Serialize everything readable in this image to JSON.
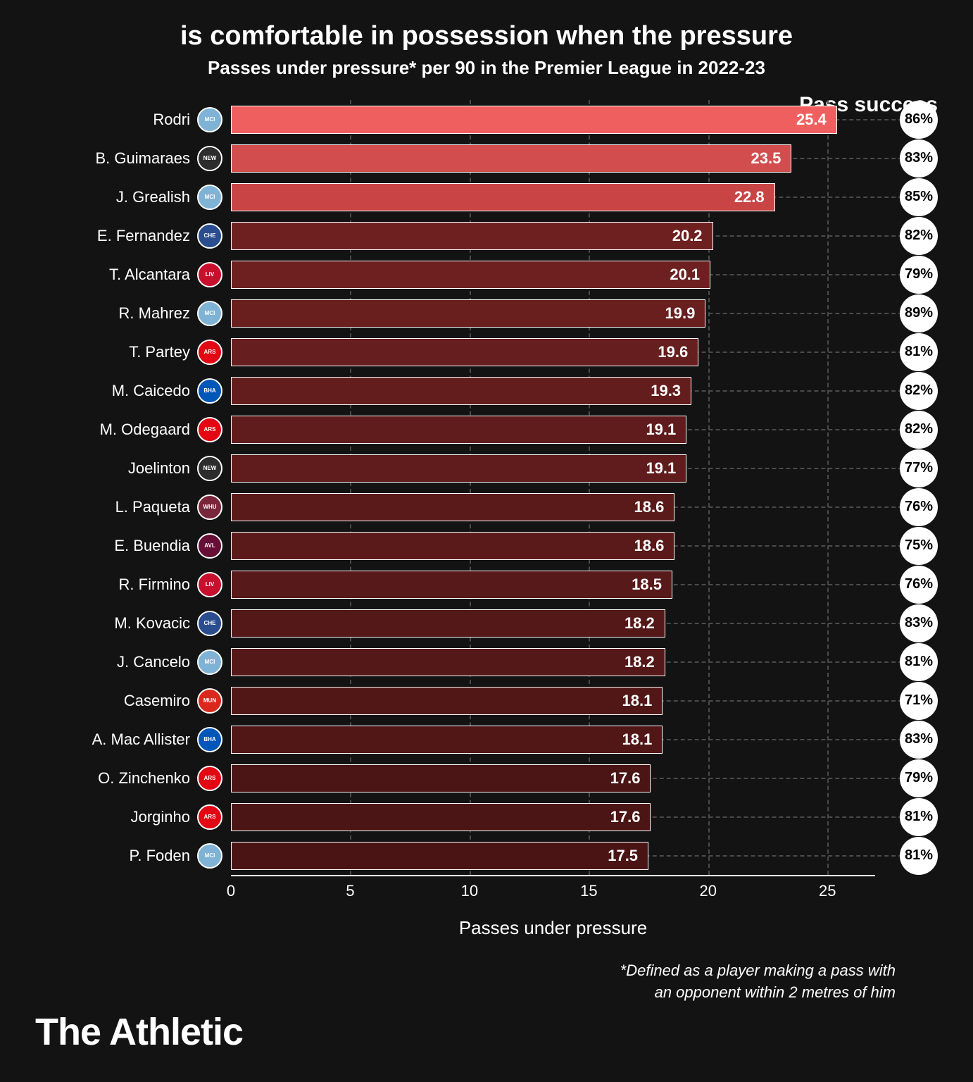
{
  "title": "is comfortable in possession when the pressure",
  "subtitle": "Passes under pressure* per 90 in the Premier League in 2022-23",
  "pass_success_header": "Pass success",
  "x_label": "Passes under pressure",
  "x_max": 27,
  "x_ticks": [
    0,
    5,
    10,
    15,
    20,
    25
  ],
  "footnote_line1": "*Defined as a player making a pass with",
  "footnote_line2": "an opponent within 2 metres of him",
  "brand": "The Athletic",
  "bar_border": "#ffffff",
  "grid_color": "#4a4a4a",
  "background": "#131313",
  "badge_bg": "#ffffff",
  "players": [
    {
      "name": "Rodri",
      "value": 25.4,
      "pct": "86%",
      "color": "#f05f5f",
      "team": "MCI",
      "team_bg": "#7fb3d5"
    },
    {
      "name": "B. Guimaraes",
      "value": 23.5,
      "pct": "83%",
      "color": "#d24d4d",
      "team": "NEW",
      "team_bg": "#2c2c2c"
    },
    {
      "name": "J. Grealish",
      "value": 22.8,
      "pct": "85%",
      "color": "#c94545",
      "team": "MCI",
      "team_bg": "#7fb3d5"
    },
    {
      "name": "E. Fernandez",
      "value": 20.2,
      "pct": "82%",
      "color": "#6e2020",
      "team": "CHE",
      "team_bg": "#2a4d8f"
    },
    {
      "name": "T. Alcantara",
      "value": 20.1,
      "pct": "79%",
      "color": "#6e2020",
      "team": "LIV",
      "team_bg": "#c8102e"
    },
    {
      "name": "R. Mahrez",
      "value": 19.9,
      "pct": "89%",
      "color": "#6a1f1f",
      "team": "MCI",
      "team_bg": "#7fb3d5"
    },
    {
      "name": "T. Partey",
      "value": 19.6,
      "pct": "81%",
      "color": "#671e1e",
      "team": "ARS",
      "team_bg": "#e30613"
    },
    {
      "name": "M. Caicedo",
      "value": 19.3,
      "pct": "82%",
      "color": "#631d1d",
      "team": "BHA",
      "team_bg": "#0057b8"
    },
    {
      "name": "M. Odegaard",
      "value": 19.1,
      "pct": "82%",
      "color": "#601c1c",
      "team": "ARS",
      "team_bg": "#e30613"
    },
    {
      "name": "Joelinton",
      "value": 19.1,
      "pct": "77%",
      "color": "#601c1c",
      "team": "NEW",
      "team_bg": "#2c2c2c"
    },
    {
      "name": "L. Paqueta",
      "value": 18.6,
      "pct": "76%",
      "color": "#5a1a1a",
      "team": "WHU",
      "team_bg": "#7a263a"
    },
    {
      "name": "E. Buendia",
      "value": 18.6,
      "pct": "75%",
      "color": "#5a1a1a",
      "team": "AVL",
      "team_bg": "#670e36"
    },
    {
      "name": "R. Firmino",
      "value": 18.5,
      "pct": "76%",
      "color": "#571919",
      "team": "LIV",
      "team_bg": "#c8102e"
    },
    {
      "name": "M. Kovacic",
      "value": 18.2,
      "pct": "83%",
      "color": "#541818",
      "team": "CHE",
      "team_bg": "#2a4d8f"
    },
    {
      "name": "J. Cancelo",
      "value": 18.2,
      "pct": "81%",
      "color": "#541818",
      "team": "MCI",
      "team_bg": "#7fb3d5"
    },
    {
      "name": "Casemiro",
      "value": 18.1,
      "pct": "71%",
      "color": "#511717",
      "team": "MUN",
      "team_bg": "#da291c"
    },
    {
      "name": "A. Mac Allister",
      "value": 18.1,
      "pct": "83%",
      "color": "#511717",
      "team": "BHA",
      "team_bg": "#0057b8"
    },
    {
      "name": "O. Zinchenko",
      "value": 17.6,
      "pct": "79%",
      "color": "#4c1515",
      "team": "ARS",
      "team_bg": "#e30613"
    },
    {
      "name": "Jorginho",
      "value": 17.6,
      "pct": "81%",
      "color": "#4c1515",
      "team": "ARS",
      "team_bg": "#e30613"
    },
    {
      "name": "P. Foden",
      "value": 17.5,
      "pct": "81%",
      "color": "#4a1414",
      "team": "MCI",
      "team_bg": "#7fb3d5"
    }
  ]
}
